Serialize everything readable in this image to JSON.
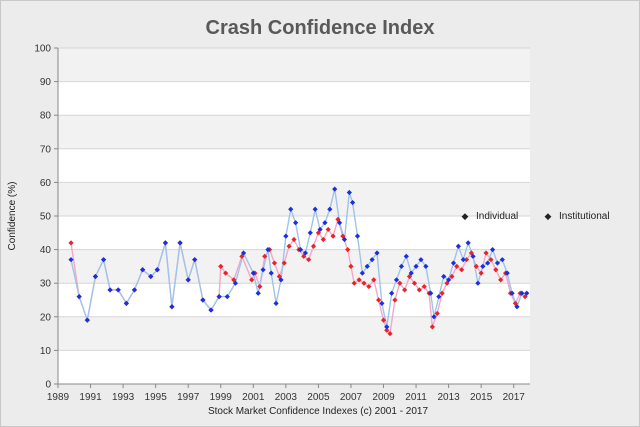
{
  "chart_data": {
    "type": "line",
    "title": "Crash Confidence Index",
    "xlabel": "Stock Market Confidence Indexes (c) 2001 - 2017",
    "ylabel": "Confidence (%)",
    "xlim": [
      1989,
      2018
    ],
    "ylim": [
      0,
      100
    ],
    "x_ticks": [
      "1989",
      "1991",
      "1993",
      "1995",
      "1997",
      "1999",
      "2001",
      "2003",
      "2005",
      "2007",
      "2009",
      "2011",
      "2013",
      "2015",
      "2017"
    ],
    "y_ticks": [
      "0",
      "10",
      "20",
      "30",
      "40",
      "50",
      "60",
      "70",
      "80",
      "90",
      "100"
    ],
    "legend": {
      "position": "right",
      "entries": [
        "Individual",
        "Institutional"
      ]
    },
    "colors": {
      "individual": "#e8242a",
      "individual_line": "#f4a8c8",
      "institutional": "#1a2fe0",
      "institutional_line": "#9ec4ea"
    },
    "series": [
      {
        "name": "Individual",
        "points": [
          [
            1989.8,
            42
          ],
          [
            1990.3,
            26
          ],
          [
            1990.8,
            19
          ],
          [
            1991.3,
            32
          ],
          [
            1991.8,
            37
          ],
          [
            1992.2,
            28
          ],
          [
            1992.7,
            28
          ],
          [
            1993.2,
            24
          ],
          [
            1993.7,
            28
          ],
          [
            1994.2,
            34
          ],
          [
            1994.7,
            32
          ],
          [
            1995.1,
            34
          ],
          [
            1995.6,
            42
          ],
          [
            1996.0,
            23
          ],
          [
            1996.5,
            42
          ],
          [
            1997.0,
            31
          ],
          [
            1997.4,
            37
          ],
          [
            1997.9,
            25
          ],
          [
            1998.4,
            22
          ],
          [
            1998.9,
            26
          ],
          [
            1999.0,
            35
          ],
          [
            1999.3,
            33
          ],
          [
            1999.8,
            31
          ],
          [
            2000.3,
            38
          ],
          [
            2000.9,
            31
          ],
          [
            2001.1,
            33
          ],
          [
            2001.4,
            29
          ],
          [
            2001.7,
            38
          ],
          [
            2002.0,
            40
          ],
          [
            2002.3,
            36
          ],
          [
            2002.6,
            32
          ],
          [
            2002.9,
            36
          ],
          [
            2003.2,
            41
          ],
          [
            2003.5,
            43
          ],
          [
            2003.8,
            40
          ],
          [
            2004.1,
            38
          ],
          [
            2004.4,
            37
          ],
          [
            2004.7,
            41
          ],
          [
            2005.0,
            45
          ],
          [
            2005.3,
            43
          ],
          [
            2005.6,
            46
          ],
          [
            2005.9,
            44
          ],
          [
            2006.2,
            49
          ],
          [
            2006.5,
            44
          ],
          [
            2006.8,
            40
          ],
          [
            2007.0,
            35
          ],
          [
            2007.2,
            30
          ],
          [
            2007.5,
            31
          ],
          [
            2007.8,
            30
          ],
          [
            2008.1,
            29
          ],
          [
            2008.4,
            31
          ],
          [
            2008.7,
            25
          ],
          [
            2009.0,
            19
          ],
          [
            2009.2,
            16
          ],
          [
            2009.4,
            15
          ],
          [
            2009.7,
            25
          ],
          [
            2010.0,
            30
          ],
          [
            2010.3,
            28
          ],
          [
            2010.6,
            32
          ],
          [
            2010.9,
            30
          ],
          [
            2011.2,
            28
          ],
          [
            2011.5,
            29
          ],
          [
            2011.8,
            27
          ],
          [
            2012.0,
            17
          ],
          [
            2012.3,
            21
          ],
          [
            2012.6,
            27
          ],
          [
            2012.9,
            30
          ],
          [
            2013.2,
            32
          ],
          [
            2013.5,
            35
          ],
          [
            2013.8,
            34
          ],
          [
            2014.1,
            37
          ],
          [
            2014.4,
            39
          ],
          [
            2014.7,
            35
          ],
          [
            2015.0,
            33
          ],
          [
            2015.3,
            39
          ],
          [
            2015.6,
            37
          ],
          [
            2015.9,
            34
          ],
          [
            2016.2,
            31
          ],
          [
            2016.5,
            33
          ],
          [
            2016.8,
            27
          ],
          [
            2017.1,
            24
          ],
          [
            2017.4,
            27
          ],
          [
            2017.7,
            26
          ]
        ]
      },
      {
        "name": "Institutional",
        "points": [
          [
            1989.8,
            37
          ],
          [
            1990.3,
            26
          ],
          [
            1990.8,
            19
          ],
          [
            1991.3,
            32
          ],
          [
            1991.8,
            37
          ],
          [
            1992.2,
            28
          ],
          [
            1992.7,
            28
          ],
          [
            1993.2,
            24
          ],
          [
            1993.7,
            28
          ],
          [
            1994.2,
            34
          ],
          [
            1994.7,
            32
          ],
          [
            1995.1,
            34
          ],
          [
            1995.6,
            42
          ],
          [
            1996.0,
            23
          ],
          [
            1996.5,
            42
          ],
          [
            1997.0,
            31
          ],
          [
            1997.4,
            37
          ],
          [
            1997.9,
            25
          ],
          [
            1998.4,
            22
          ],
          [
            1998.9,
            26
          ],
          [
            1999.4,
            26
          ],
          [
            1999.9,
            30
          ],
          [
            2000.4,
            39
          ],
          [
            2001.0,
            33
          ],
          [
            2001.3,
            27
          ],
          [
            2001.6,
            34
          ],
          [
            2001.9,
            40
          ],
          [
            2002.1,
            33
          ],
          [
            2002.4,
            24
          ],
          [
            2002.7,
            31
          ],
          [
            2003.0,
            44
          ],
          [
            2003.3,
            52
          ],
          [
            2003.6,
            48
          ],
          [
            2003.9,
            40
          ],
          [
            2004.2,
            39
          ],
          [
            2004.5,
            45
          ],
          [
            2004.8,
            52
          ],
          [
            2005.1,
            46
          ],
          [
            2005.4,
            48
          ],
          [
            2005.7,
            52
          ],
          [
            2006.0,
            58
          ],
          [
            2006.3,
            48
          ],
          [
            2006.6,
            43
          ],
          [
            2006.9,
            57
          ],
          [
            2007.1,
            54
          ],
          [
            2007.4,
            44
          ],
          [
            2007.7,
            33
          ],
          [
            2008.0,
            35
          ],
          [
            2008.3,
            37
          ],
          [
            2008.6,
            39
          ],
          [
            2008.9,
            24
          ],
          [
            2009.2,
            17
          ],
          [
            2009.5,
            27
          ],
          [
            2009.8,
            31
          ],
          [
            2010.1,
            35
          ],
          [
            2010.4,
            38
          ],
          [
            2010.7,
            33
          ],
          [
            2011.0,
            35
          ],
          [
            2011.3,
            37
          ],
          [
            2011.6,
            35
          ],
          [
            2011.9,
            27
          ],
          [
            2012.1,
            20
          ],
          [
            2012.4,
            26
          ],
          [
            2012.7,
            32
          ],
          [
            2013.0,
            31
          ],
          [
            2013.3,
            36
          ],
          [
            2013.6,
            41
          ],
          [
            2013.9,
            37
          ],
          [
            2014.2,
            42
          ],
          [
            2014.5,
            38
          ],
          [
            2014.8,
            30
          ],
          [
            2015.1,
            35
          ],
          [
            2015.4,
            36
          ],
          [
            2015.7,
            40
          ],
          [
            2016.0,
            36
          ],
          [
            2016.3,
            37
          ],
          [
            2016.6,
            33
          ],
          [
            2016.9,
            27
          ],
          [
            2017.2,
            23
          ],
          [
            2017.5,
            27
          ],
          [
            2017.8,
            27
          ]
        ]
      }
    ]
  }
}
